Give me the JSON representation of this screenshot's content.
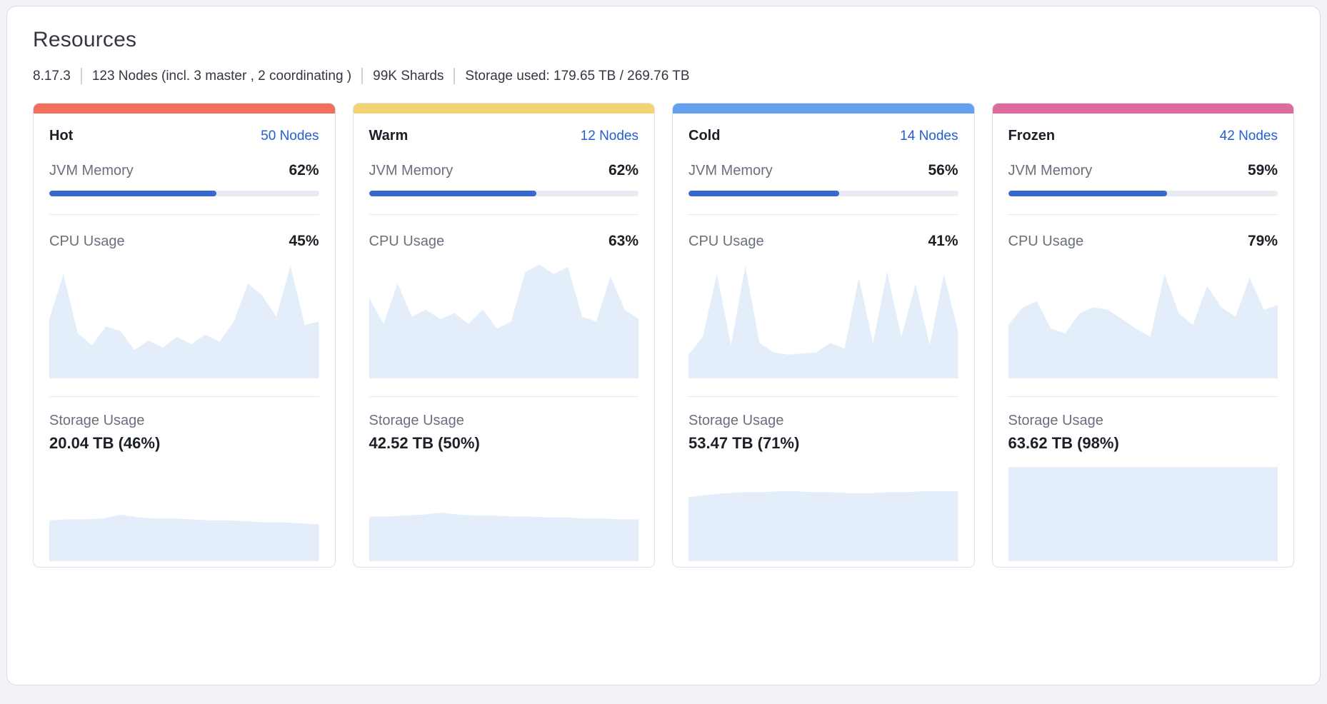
{
  "page": {
    "title": "Resources"
  },
  "meta": {
    "version": "8.17.3",
    "nodes": "123 Nodes (incl. 3 master , 2 coordinating )",
    "shards": "99K Shards",
    "storage": "Storage used: 179.65 TB / 269.76 TB"
  },
  "labels": {
    "jvm": "JVM Memory",
    "cpu": "CPU Usage",
    "storage": "Storage Usage"
  },
  "colors": {
    "hot_accent": "#F1705B",
    "warm_accent": "#F3D371",
    "cold_accent": "#64A0EE",
    "frozen_accent": "#DD6B9D",
    "link": "#2360CE",
    "bar_fill": "#3567D1",
    "bar_track": "#E7EBF2",
    "spark_fill": "#E4EDFA"
  },
  "cards": [
    {
      "tier": "Hot",
      "nodes": "50 Nodes",
      "jvm_percent": "62%",
      "jvm_value": 62,
      "cpu_percent": "45%",
      "storage_value": "20.04 TB (46%)",
      "accent": "#F1705B",
      "cpu_spark": [
        50,
        88,
        38,
        28,
        44,
        40,
        24,
        32,
        26,
        35,
        29,
        37,
        31,
        48,
        80,
        70,
        52,
        95,
        45,
        48
      ],
      "storage_spark": [
        42,
        43,
        43,
        44,
        48,
        45,
        44,
        44,
        43,
        42,
        42,
        41,
        40,
        40,
        39,
        38
      ]
    },
    {
      "tier": "Warm",
      "nodes": "12 Nodes",
      "jvm_percent": "62%",
      "jvm_value": 62,
      "cpu_percent": "63%",
      "storage_value": "42.52 TB (50%)",
      "accent": "#F3D371",
      "cpu_spark": [
        68,
        46,
        80,
        52,
        58,
        50,
        55,
        46,
        58,
        42,
        48,
        90,
        96,
        88,
        94,
        52,
        48,
        86,
        58,
        50
      ],
      "storage_spark": [
        46,
        46,
        47,
        48,
        50,
        48,
        47,
        47,
        46,
        46,
        45,
        45,
        44,
        44,
        43,
        43
      ]
    },
    {
      "tier": "Cold",
      "nodes": "14 Nodes",
      "jvm_percent": "56%",
      "jvm_value": 56,
      "cpu_percent": "41%",
      "storage_value": "53.47 TB (71%)",
      "accent": "#64A0EE",
      "cpu_spark": [
        20,
        35,
        88,
        28,
        95,
        30,
        22,
        20,
        21,
        22,
        30,
        25,
        85,
        30,
        90,
        35,
        80,
        28,
        88,
        40
      ],
      "storage_spark": [
        66,
        68,
        70,
        71,
        71,
        72,
        72,
        71,
        71,
        70,
        70,
        71,
        71,
        72,
        72,
        72
      ]
    },
    {
      "tier": "Frozen",
      "nodes": "42 Nodes",
      "jvm_percent": "59%",
      "jvm_value": 59,
      "cpu_percent": "79%",
      "storage_value": "63.62 TB (98%)",
      "accent": "#DD6B9D",
      "cpu_spark": [
        45,
        60,
        65,
        42,
        38,
        55,
        60,
        58,
        50,
        42,
        35,
        88,
        55,
        45,
        78,
        60,
        52,
        85,
        58,
        62
      ],
      "storage_spark": [
        97,
        97,
        97,
        97,
        97,
        97,
        97,
        97,
        97,
        97,
        97,
        97,
        97,
        97,
        97,
        97
      ]
    }
  ]
}
